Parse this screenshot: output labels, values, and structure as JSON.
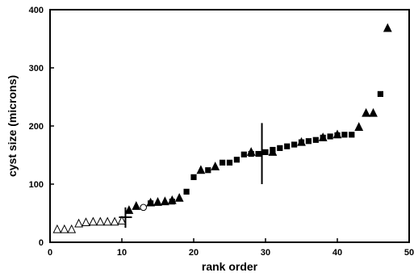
{
  "chart_data": {
    "type": "scatter",
    "title": "",
    "xlabel": "rank order",
    "ylabel": "cyst size (microns)",
    "xlim": [
      0,
      50
    ],
    "ylim": [
      0,
      400
    ],
    "xticks": [
      0,
      10,
      20,
      30,
      40,
      50
    ],
    "yticks": [
      0,
      100,
      200,
      300,
      400
    ],
    "grid": false,
    "legend": "none",
    "series": [
      {
        "marker": "open-triangle",
        "points": [
          [
            1,
            22
          ],
          [
            2,
            22
          ],
          [
            3,
            22
          ],
          [
            4,
            32
          ],
          [
            5,
            34
          ],
          [
            6,
            35
          ],
          [
            7,
            35
          ],
          [
            8,
            35
          ],
          [
            9,
            35
          ],
          [
            10,
            37
          ]
        ]
      },
      {
        "marker": "open-circle",
        "points": [
          [
            13,
            60
          ]
        ]
      },
      {
        "marker": "filled-triangle",
        "points": [
          [
            11,
            55
          ],
          [
            12,
            62
          ],
          [
            14,
            68
          ],
          [
            15,
            69
          ],
          [
            16,
            70
          ],
          [
            17,
            72
          ],
          [
            18,
            76
          ],
          [
            21,
            124
          ],
          [
            23,
            130
          ],
          [
            28,
            155
          ],
          [
            31,
            155
          ],
          [
            35,
            172
          ],
          [
            38,
            180
          ],
          [
            40,
            185
          ],
          [
            43,
            198
          ],
          [
            44,
            222
          ],
          [
            45,
            222
          ],
          [
            47,
            368
          ]
        ]
      },
      {
        "marker": "filled-square",
        "points": [
          [
            14,
            67
          ],
          [
            17,
            70
          ],
          [
            19,
            87
          ],
          [
            20,
            112
          ],
          [
            22,
            124
          ],
          [
            24,
            137
          ],
          [
            25,
            137
          ],
          [
            26,
            142
          ],
          [
            27,
            151
          ],
          [
            28,
            152
          ],
          [
            29,
            152
          ],
          [
            30,
            155
          ],
          [
            31,
            159
          ],
          [
            32,
            162
          ],
          [
            33,
            165
          ],
          [
            34,
            168
          ],
          [
            35,
            172
          ],
          [
            36,
            174
          ],
          [
            37,
            176
          ],
          [
            38,
            180
          ],
          [
            39,
            182
          ],
          [
            40,
            184
          ],
          [
            41,
            185
          ],
          [
            42,
            185
          ],
          [
            46,
            255
          ]
        ]
      }
    ],
    "markers": [
      {
        "type": "vertical-line",
        "x": 10.5,
        "y_range": [
          25,
          60
        ]
      },
      {
        "type": "horizontal-line",
        "y": 43,
        "x_range": [
          9.6,
          11.4
        ]
      },
      {
        "type": "vertical-line",
        "x": 29.5,
        "y_range": [
          100,
          205
        ]
      },
      {
        "type": "horizontal-line",
        "y": 152,
        "x_range": [
          28.7,
          30.3
        ]
      }
    ]
  }
}
